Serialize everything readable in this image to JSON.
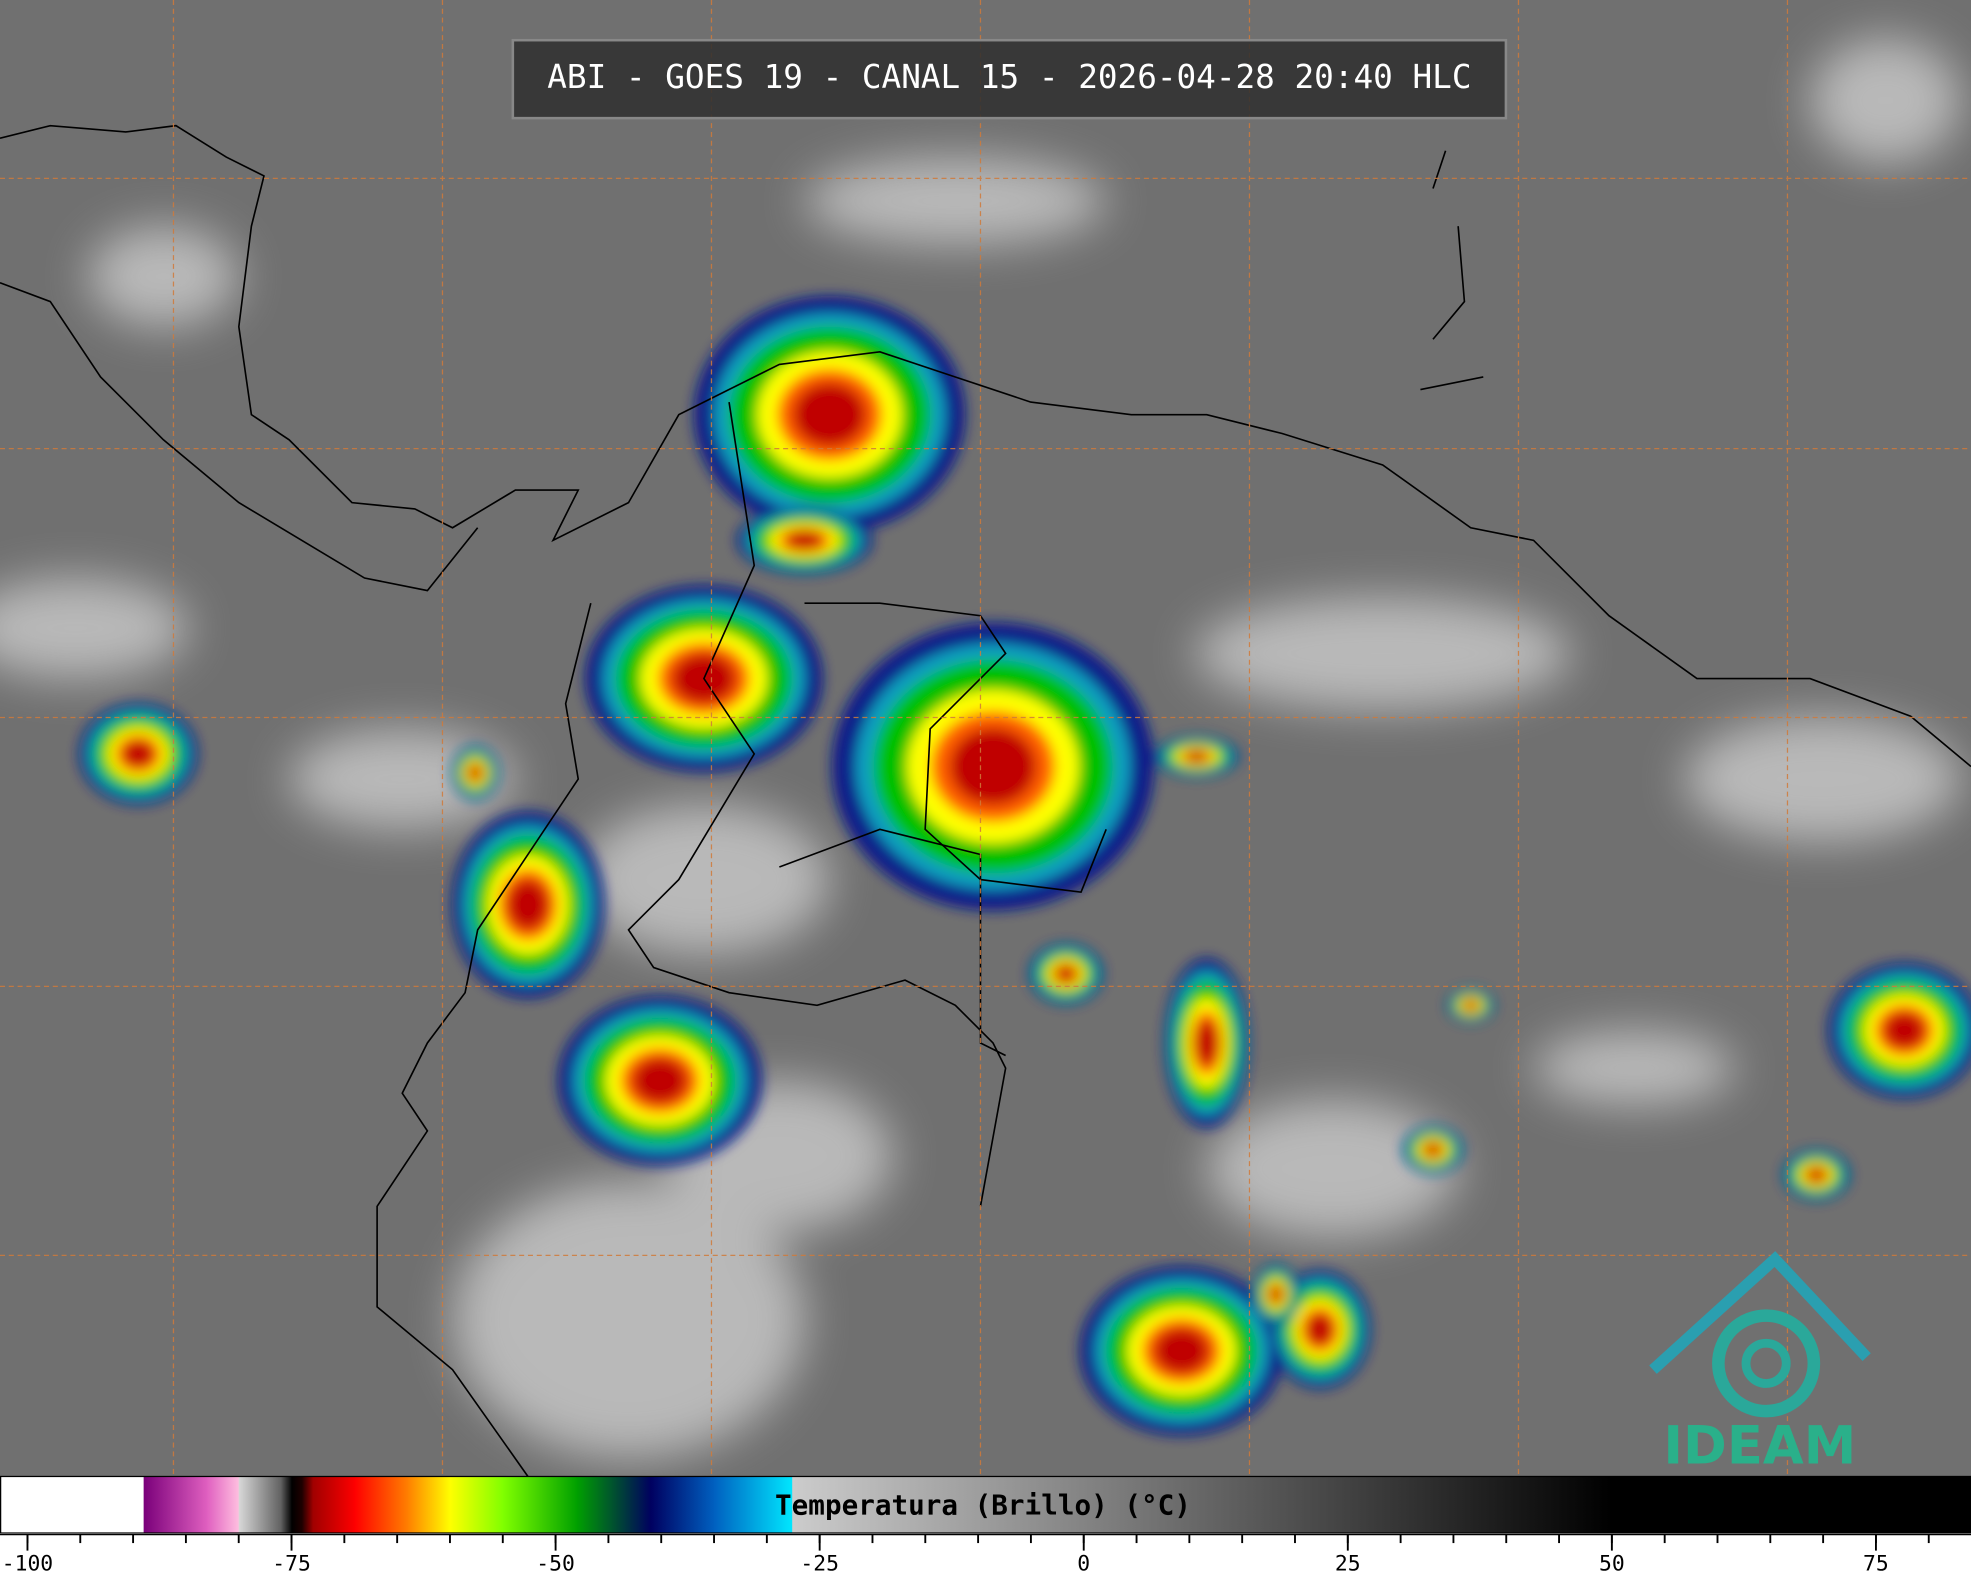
{
  "title": "ABI - GOES 19 - CANAL 15 - 2026-04-28 20:40 HLC",
  "logo": "IDEAM",
  "colorbar": {
    "label": "Temperatura (Brillo) (°C)",
    "range": [
      -102.6,
      84
    ],
    "ticks": [
      -100,
      -75,
      -50,
      -25,
      0,
      25,
      50,
      75
    ],
    "minor_ticks": [
      -100,
      -95,
      -90,
      -85,
      -80,
      -75,
      -70,
      -65,
      -60,
      -55,
      -50,
      -45,
      -40,
      -35,
      -30,
      -25,
      -20,
      -15,
      -10,
      -5,
      0,
      5,
      10,
      15,
      20,
      25,
      30,
      35,
      40,
      45,
      50,
      55,
      60,
      65,
      70,
      75,
      80
    ],
    "stops": [
      {
        "value": -102.6,
        "color": "#ffffff"
      },
      {
        "value": -89,
        "color": "#ffffff"
      },
      {
        "value": -89,
        "color": "#7a007a"
      },
      {
        "value": -83,
        "color": "#e060c0"
      },
      {
        "value": -80,
        "color": "#ffc0e0"
      },
      {
        "value": -80,
        "color": "#d8d8d8"
      },
      {
        "value": -76,
        "color": "#606060"
      },
      {
        "value": -75,
        "color": "#000000"
      },
      {
        "value": -74,
        "color": "#200000"
      },
      {
        "value": -73,
        "color": "#a00000"
      },
      {
        "value": -69,
        "color": "#ff0000"
      },
      {
        "value": -64,
        "color": "#ff8000"
      },
      {
        "value": -60,
        "color": "#ffff00"
      },
      {
        "value": -55,
        "color": "#80ff00"
      },
      {
        "value": -48,
        "color": "#00a000"
      },
      {
        "value": -41,
        "color": "#000060"
      },
      {
        "value": -35,
        "color": "#0060c0"
      },
      {
        "value": -27.6,
        "color": "#00e8ff"
      },
      {
        "value": -27.6,
        "color": "#cccccc"
      },
      {
        "value": 50,
        "color": "#000000"
      },
      {
        "value": 84,
        "color": "#000000"
      }
    ]
  }
}
